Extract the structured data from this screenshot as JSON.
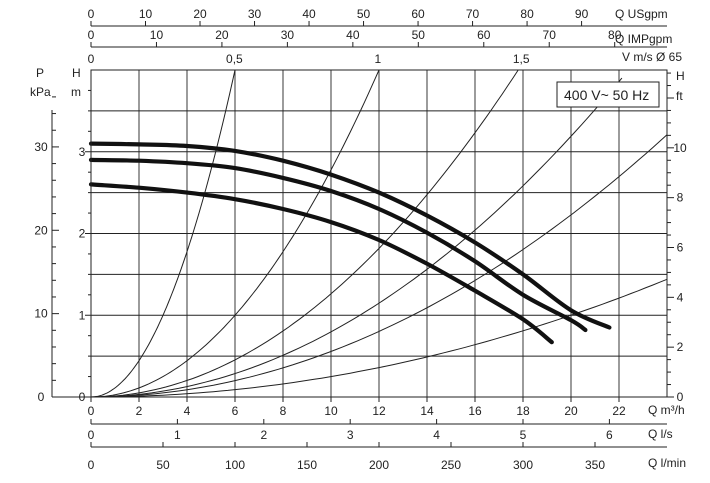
{
  "chart_data": {
    "type": "line",
    "x": {
      "label": "Q m³/h",
      "range": [
        0,
        24
      ],
      "ticks": [
        0,
        2,
        4,
        6,
        8,
        10,
        12,
        14,
        16,
        18,
        20,
        22
      ]
    },
    "y_left": {
      "label_pressure": "P",
      "unit_pressure": "kPa",
      "label_head": "H",
      "unit_head": "m",
      "head_range": [
        0,
        4
      ],
      "pressure_ticks": [
        0,
        10,
        20,
        30
      ],
      "head_ticks": [
        0,
        1,
        2,
        3
      ]
    },
    "y_right": {
      "label": "H",
      "unit": "ft",
      "ticks": [
        0,
        2,
        4,
        6,
        8,
        10
      ]
    },
    "top_axes": [
      {
        "label": "Q USgpm",
        "ticks": [
          0,
          10,
          20,
          30,
          40,
          50,
          60,
          70,
          80,
          90
        ],
        "m3h_per_unit": 0.22712
      },
      {
        "label": "Q IMPgpm",
        "ticks": [
          0,
          10,
          20,
          30,
          40,
          50,
          60,
          70,
          80
        ],
        "m3h_per_unit": 0.27276
      }
    ],
    "velocity_axis": {
      "label": "V m/s Ø 65",
      "ticks": [
        0,
        0.5,
        1,
        1.5
      ],
      "m3h_per_unit": 11.95
    },
    "bottom_axes": [
      {
        "label": "Q l/s",
        "ticks": [
          0,
          1,
          2,
          3,
          4,
          5,
          6
        ],
        "m3h_per_unit": 3.6
      },
      {
        "label": "Q l/min",
        "ticks": [
          0,
          50,
          100,
          150,
          200,
          250,
          300,
          350
        ],
        "m3h_per_unit": 0.06
      }
    ],
    "annotation": "400 V~ 50 Hz",
    "series": [
      {
        "x": [
          0,
          2,
          4,
          6,
          8,
          10,
          12,
          14,
          16,
          18,
          20,
          21.6
        ],
        "y": [
          3.1,
          3.09,
          3.07,
          3.01,
          2.89,
          2.72,
          2.5,
          2.22,
          1.89,
          1.5,
          1.06,
          0.85
        ]
      },
      {
        "x": [
          0,
          2,
          4,
          6,
          8,
          10,
          12,
          14,
          16,
          18,
          20,
          20.6
        ],
        "y": [
          2.9,
          2.89,
          2.86,
          2.8,
          2.68,
          2.52,
          2.3,
          2.01,
          1.66,
          1.25,
          0.94,
          0.82
        ]
      },
      {
        "x": [
          0,
          2,
          4,
          6,
          8,
          10,
          12,
          14,
          16,
          18,
          19.2
        ],
        "y": [
          2.6,
          2.56,
          2.5,
          2.42,
          2.3,
          2.14,
          1.92,
          1.63,
          1.3,
          0.95,
          0.67
        ]
      }
    ],
    "system_curves": [
      {
        "x_at_top": 6.0
      },
      {
        "x_at_top": 12.0
      },
      {
        "x_at_top": 17.8
      },
      {
        "x_at_top": 22.4
      },
      {
        "x_at_top": 26.8
      },
      {
        "x_at_top": 40.0
      }
    ]
  }
}
